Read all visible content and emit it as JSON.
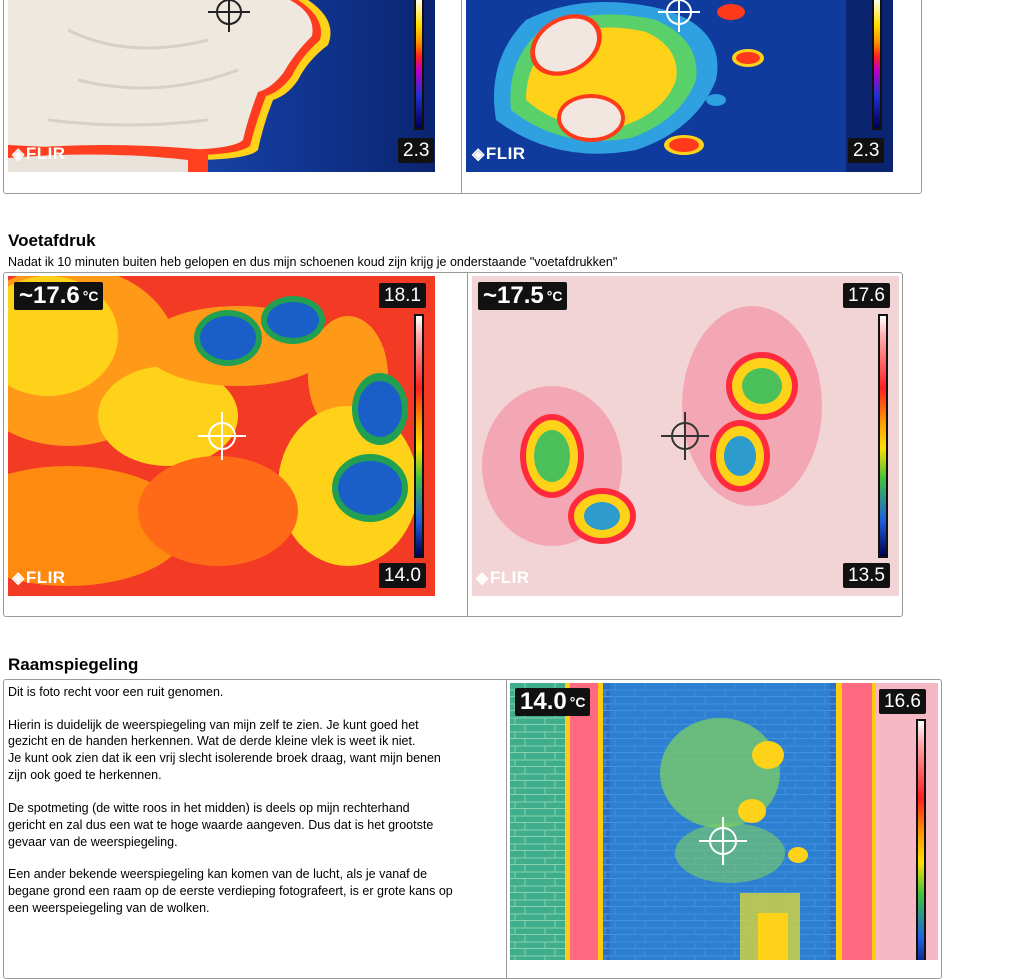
{
  "top": {
    "left_scale_min": "2.3",
    "right_scale_min": "2.3",
    "logo": "FLIR"
  },
  "voetafdruk": {
    "heading": "Voetafdruk",
    "description": "Nadat ik 10  minuten buiten heb gelopen en dus mijn  schoenen koud zijn  krijg  je onderstaande \"voetafdrukken\"",
    "left": {
      "spot_temp": "~17.6",
      "unit": "°C",
      "scale_max": "18.1",
      "scale_min": "14.0"
    },
    "right": {
      "spot_temp": "~17.5",
      "unit": "°C",
      "scale_max": "17.6",
      "scale_min": "13.5"
    }
  },
  "raam": {
    "heading": "Raamspiegeling",
    "paragraphs": [
      "Dit is  foto recht voor een ruit genomen.",
      "Hierin is duidelijk  de weerspiegeling van mijn  zelf te zien. Je kunt goed het\ngezicht en de handen herkennen. Wat de derde kleine vlek is weet ik niet.\nJe kunt ook zien dat ik  een vrij slecht  isolerende broek draag,  want mijn benen\nzijn ook goed te herkennen.",
      "De spotmeting (de witte roos in het midden) is deels op mijn rechterhand\ngericht en zal  dus  een wat te hoge waarde aangeven. Dus dat is het grootste\ngevaar van de weerspiegeling.",
      "Een ander bekende weerspiegeling kan komen van de lucht,  als  je vanaf de\nbegane grond een raam op de eerste verdieping fotografeert, is er grote kans  op\neen weerspeiegeling van de wolken."
    ],
    "image": {
      "spot_temp": "14.0",
      "unit": "°C",
      "scale_max": "16.6"
    }
  },
  "colors": {
    "border": "#9a9a9a",
    "rainbow_hot": "#ff2a2a",
    "rainbow_cold": "#0a2c8c"
  }
}
